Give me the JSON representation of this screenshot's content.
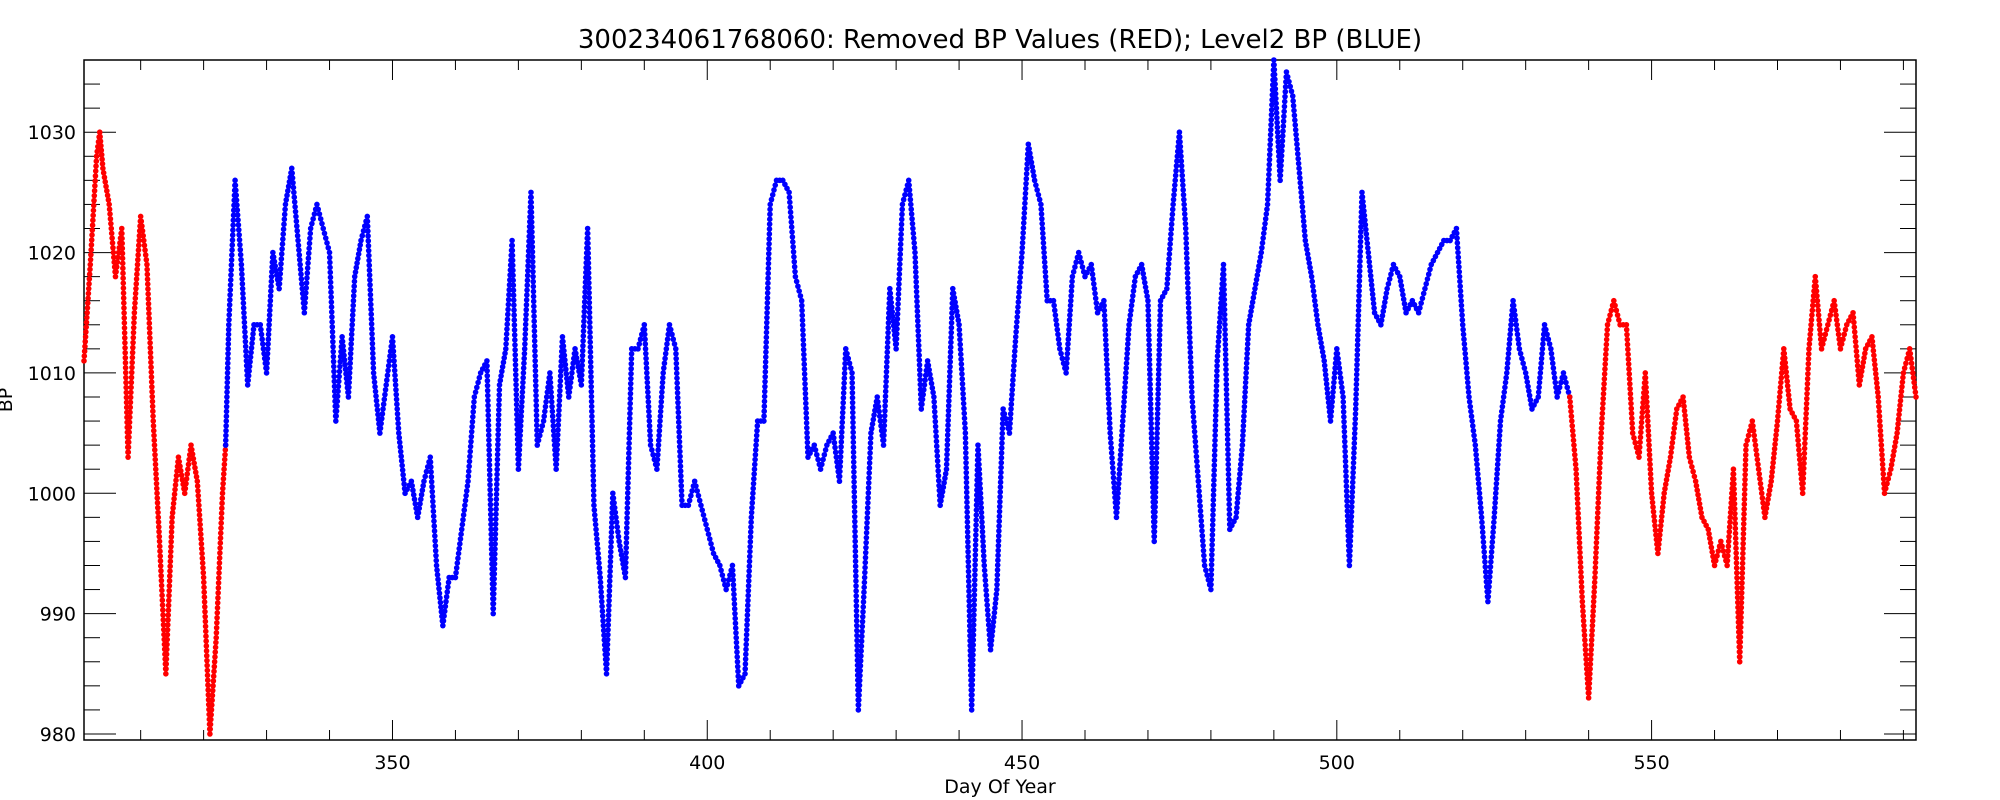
{
  "chart_data": {
    "type": "scatter",
    "title": "300234061768060: Removed BP Values (RED); Level2 BP (BLUE)",
    "xlabel": "Day Of Year",
    "ylabel": "BP",
    "xlim": [
      301,
      592
    ],
    "ylim": [
      979.5,
      1036
    ],
    "x_ticks": [
      350,
      400,
      450,
      500,
      550
    ],
    "y_ticks": [
      980,
      990,
      1000,
      1010,
      1020,
      1030
    ],
    "grid": false,
    "legend": "none",
    "series": [
      {
        "color": "#ff0000",
        "points": [
          [
            301,
            1011
          ],
          [
            302,
            1019
          ],
          [
            303,
            1028
          ],
          [
            303.5,
            1030
          ],
          [
            304,
            1027
          ],
          [
            305,
            1024
          ],
          [
            306,
            1018
          ],
          [
            307,
            1022
          ],
          [
            308,
            1003
          ],
          [
            309,
            1015
          ],
          [
            310,
            1023
          ],
          [
            311,
            1019
          ],
          [
            312,
            1006
          ],
          [
            313,
            996
          ],
          [
            314,
            985
          ],
          [
            315,
            998
          ],
          [
            316,
            1003
          ],
          [
            317,
            1000
          ],
          [
            318,
            1004
          ],
          [
            319,
            1001
          ],
          [
            320,
            993
          ],
          [
            321,
            980
          ],
          [
            322,
            988
          ],
          [
            323,
            1000
          ],
          [
            323.5,
            1004
          ]
        ]
      },
      {
        "color": "#0000ff",
        "points": [
          [
            323.5,
            1004
          ],
          [
            324,
            1014
          ],
          [
            325,
            1026
          ],
          [
            326,
            1019
          ],
          [
            327,
            1009
          ],
          [
            328,
            1014
          ],
          [
            329,
            1014
          ],
          [
            330,
            1010
          ],
          [
            331,
            1020
          ],
          [
            332,
            1017
          ],
          [
            333,
            1024
          ],
          [
            334,
            1027
          ],
          [
            335,
            1021
          ],
          [
            336,
            1015
          ],
          [
            337,
            1022
          ],
          [
            338,
            1024
          ],
          [
            339,
            1022
          ],
          [
            340,
            1020
          ],
          [
            341,
            1006
          ],
          [
            342,
            1013
          ],
          [
            343,
            1008
          ],
          [
            344,
            1018
          ],
          [
            345,
            1021
          ],
          [
            346,
            1023
          ],
          [
            347,
            1010
          ],
          [
            348,
            1005
          ],
          [
            349,
            1009
          ],
          [
            350,
            1013
          ],
          [
            351,
            1005
          ],
          [
            352,
            1000
          ],
          [
            353,
            1001
          ],
          [
            354,
            998
          ],
          [
            355,
            1001
          ],
          [
            356,
            1003
          ],
          [
            357,
            994
          ],
          [
            358,
            989
          ],
          [
            359,
            993
          ],
          [
            360,
            993
          ],
          [
            361,
            997
          ],
          [
            362,
            1001
          ],
          [
            363,
            1008
          ],
          [
            364,
            1010
          ],
          [
            365,
            1011
          ],
          [
            366,
            990
          ],
          [
            367,
            1009
          ],
          [
            368,
            1012
          ],
          [
            369,
            1021
          ],
          [
            370,
            1002
          ],
          [
            371,
            1012
          ],
          [
            372,
            1025
          ],
          [
            373,
            1004
          ],
          [
            374,
            1006
          ],
          [
            375,
            1010
          ],
          [
            376,
            1002
          ],
          [
            377,
            1013
          ],
          [
            378,
            1008
          ],
          [
            379,
            1012
          ],
          [
            380,
            1009
          ],
          [
            381,
            1022
          ],
          [
            382,
            999
          ],
          [
            383,
            993
          ],
          [
            384,
            985
          ],
          [
            385,
            1000
          ],
          [
            386,
            996
          ],
          [
            387,
            993
          ],
          [
            388,
            1012
          ],
          [
            389,
            1012
          ],
          [
            390,
            1014
          ],
          [
            391,
            1004
          ],
          [
            392,
            1002
          ],
          [
            393,
            1010
          ],
          [
            394,
            1014
          ],
          [
            395,
            1012
          ],
          [
            396,
            999
          ],
          [
            397,
            999
          ],
          [
            398,
            1001
          ],
          [
            399,
            999
          ],
          [
            400,
            997
          ],
          [
            401,
            995
          ],
          [
            402,
            994
          ],
          [
            403,
            992
          ],
          [
            404,
            994
          ],
          [
            405,
            984
          ],
          [
            406,
            985
          ],
          [
            407,
            998
          ],
          [
            408,
            1006
          ],
          [
            409,
            1006
          ],
          [
            410,
            1024
          ],
          [
            411,
            1026
          ],
          [
            412,
            1026
          ],
          [
            413,
            1025
          ],
          [
            414,
            1018
          ],
          [
            415,
            1016
          ],
          [
            416,
            1003
          ],
          [
            417,
            1004
          ],
          [
            418,
            1002
          ],
          [
            419,
            1004
          ],
          [
            420,
            1005
          ],
          [
            421,
            1001
          ],
          [
            422,
            1012
          ],
          [
            423,
            1010
          ],
          [
            424,
            982
          ],
          [
            425,
            993
          ],
          [
            426,
            1005
          ],
          [
            427,
            1008
          ],
          [
            428,
            1004
          ],
          [
            429,
            1017
          ],
          [
            430,
            1012
          ],
          [
            431,
            1024
          ],
          [
            432,
            1026
          ],
          [
            433,
            1020
          ],
          [
            434,
            1007
          ],
          [
            435,
            1011
          ],
          [
            436,
            1008
          ],
          [
            437,
            999
          ],
          [
            438,
            1002
          ],
          [
            439,
            1017
          ],
          [
            440,
            1014
          ],
          [
            441,
            1005
          ],
          [
            442,
            982
          ],
          [
            443,
            1004
          ],
          [
            444,
            994
          ],
          [
            445,
            987
          ],
          [
            446,
            992
          ],
          [
            447,
            1007
          ],
          [
            448,
            1005
          ],
          [
            449,
            1013
          ],
          [
            450,
            1020
          ],
          [
            451,
            1029
          ],
          [
            452,
            1026
          ],
          [
            453,
            1024
          ],
          [
            454,
            1016
          ],
          [
            455,
            1016
          ],
          [
            456,
            1012
          ],
          [
            457,
            1010
          ],
          [
            458,
            1018
          ],
          [
            459,
            1020
          ],
          [
            460,
            1018
          ],
          [
            461,
            1019
          ],
          [
            462,
            1015
          ],
          [
            463,
            1016
          ],
          [
            464,
            1005
          ],
          [
            465,
            998
          ],
          [
            466,
            1006
          ],
          [
            467,
            1014
          ],
          [
            468,
            1018
          ],
          [
            469,
            1019
          ],
          [
            470,
            1016
          ],
          [
            471,
            996
          ],
          [
            472,
            1016
          ],
          [
            473,
            1017
          ],
          [
            474,
            1024
          ],
          [
            475,
            1030
          ],
          [
            476,
            1022
          ],
          [
            477,
            1008
          ],
          [
            478,
            1001
          ],
          [
            479,
            994
          ],
          [
            480,
            992
          ],
          [
            481,
            1011
          ],
          [
            482,
            1019
          ],
          [
            483,
            997
          ],
          [
            484,
            998
          ],
          [
            485,
            1004
          ],
          [
            486,
            1014
          ],
          [
            487,
            1017
          ],
          [
            488,
            1020
          ],
          [
            489,
            1024
          ],
          [
            490,
            1036
          ],
          [
            491,
            1026
          ],
          [
            492,
            1035
          ],
          [
            493,
            1033
          ],
          [
            494,
            1027
          ],
          [
            495,
            1021
          ],
          [
            496,
            1018
          ],
          [
            497,
            1014
          ],
          [
            498,
            1011
          ],
          [
            499,
            1006
          ],
          [
            500,
            1012
          ],
          [
            501,
            1008
          ],
          [
            502,
            994
          ],
          [
            503,
            1007
          ],
          [
            504,
            1025
          ],
          [
            505,
            1020
          ],
          [
            506,
            1015
          ],
          [
            507,
            1014
          ],
          [
            508,
            1017
          ],
          [
            509,
            1019
          ],
          [
            510,
            1018
          ],
          [
            511,
            1015
          ],
          [
            512,
            1016
          ],
          [
            513,
            1015
          ],
          [
            514,
            1017
          ],
          [
            515,
            1019
          ],
          [
            516,
            1020
          ],
          [
            517,
            1021
          ],
          [
            518,
            1021
          ],
          [
            519,
            1022
          ],
          [
            520,
            1014
          ],
          [
            521,
            1008
          ],
          [
            522,
            1004
          ],
          [
            523,
            998
          ],
          [
            524,
            991
          ],
          [
            525,
            998
          ],
          [
            526,
            1006
          ],
          [
            527,
            1010
          ],
          [
            528,
            1016
          ],
          [
            529,
            1012
          ],
          [
            530,
            1010
          ],
          [
            531,
            1007
          ],
          [
            532,
            1008
          ],
          [
            533,
            1014
          ],
          [
            534,
            1012
          ],
          [
            535,
            1008
          ],
          [
            536,
            1010
          ],
          [
            537,
            1008
          ]
        ]
      },
      {
        "color": "#ff0000",
        "points": [
          [
            537,
            1008
          ],
          [
            538,
            1002
          ],
          [
            539,
            991
          ],
          [
            540,
            983
          ],
          [
            541,
            993
          ],
          [
            542,
            1005
          ],
          [
            543,
            1014
          ],
          [
            544,
            1016
          ],
          [
            545,
            1014
          ],
          [
            546,
            1014
          ],
          [
            547,
            1005
          ],
          [
            548,
            1003
          ],
          [
            549,
            1010
          ],
          [
            550,
            1000
          ],
          [
            551,
            995
          ],
          [
            552,
            1000
          ],
          [
            553,
            1003
          ],
          [
            554,
            1007
          ],
          [
            555,
            1008
          ],
          [
            556,
            1003
          ],
          [
            557,
            1001
          ],
          [
            558,
            998
          ],
          [
            559,
            997
          ],
          [
            560,
            994
          ],
          [
            561,
            996
          ],
          [
            562,
            994
          ],
          [
            563,
            1002
          ],
          [
            564,
            986
          ],
          [
            565,
            1004
          ],
          [
            566,
            1006
          ],
          [
            567,
            1002
          ],
          [
            568,
            998
          ],
          [
            569,
            1001
          ],
          [
            570,
            1006
          ],
          [
            571,
            1012
          ],
          [
            572,
            1007
          ],
          [
            573,
            1006
          ],
          [
            574,
            1000
          ],
          [
            575,
            1012
          ],
          [
            576,
            1018
          ],
          [
            577,
            1012
          ],
          [
            578,
            1014
          ],
          [
            579,
            1016
          ],
          [
            580,
            1012
          ],
          [
            581,
            1014
          ],
          [
            582,
            1015
          ],
          [
            583,
            1009
          ],
          [
            584,
            1012
          ],
          [
            585,
            1013
          ],
          [
            586,
            1008
          ],
          [
            587,
            1000
          ],
          [
            588,
            1002
          ],
          [
            589,
            1005
          ],
          [
            590,
            1010
          ],
          [
            591,
            1012
          ],
          [
            592,
            1008
          ]
        ]
      }
    ]
  }
}
